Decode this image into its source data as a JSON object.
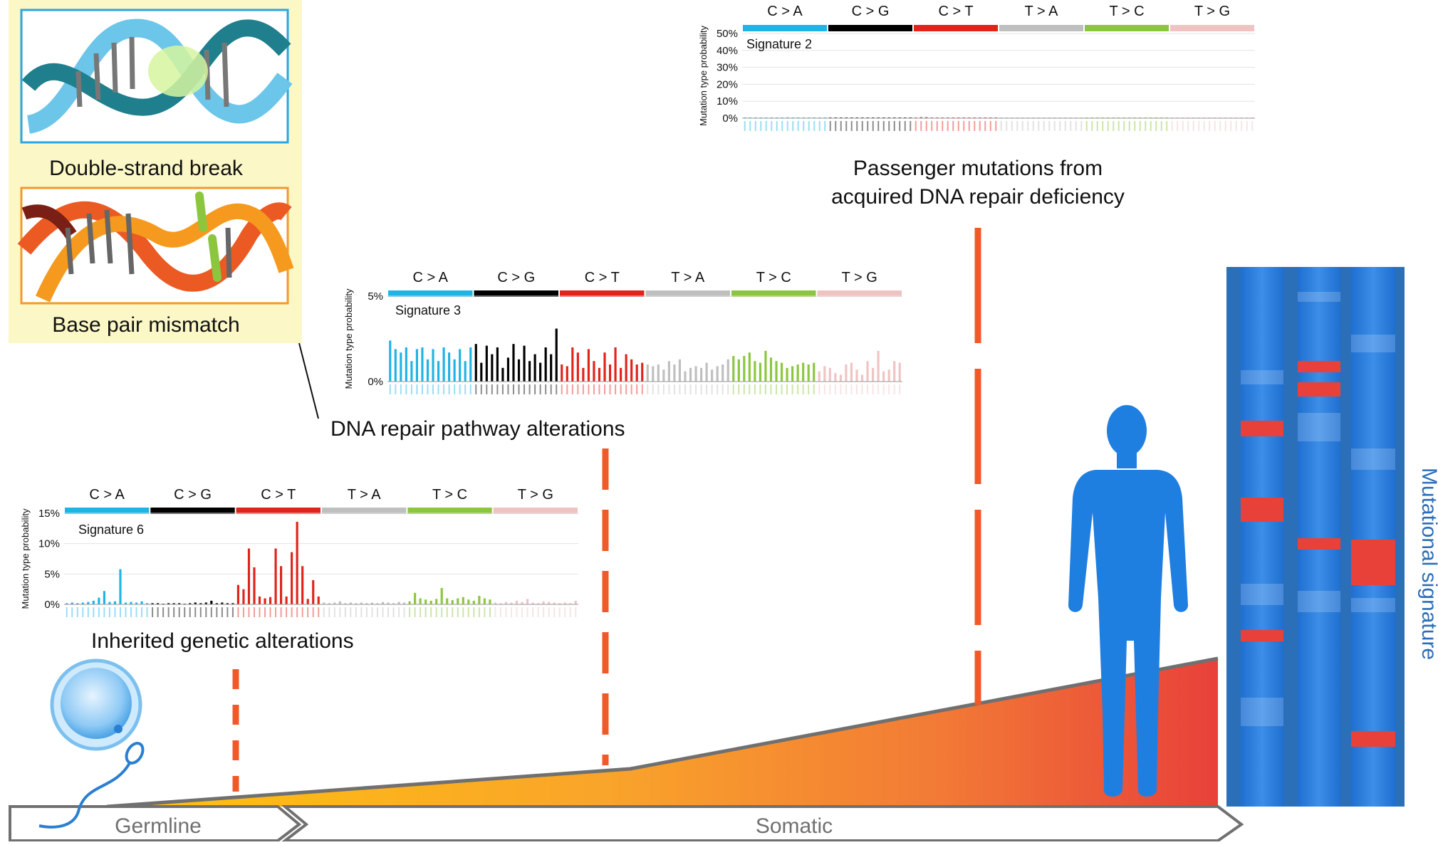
{
  "panel": {
    "dsb_label": "Double-strand break",
    "mismatch_label": "Base pair mismatch"
  },
  "stages": {
    "inherited": "Inherited genetic alterations",
    "repair_pathway": "DNA repair pathway alterations",
    "passenger_line1": "Passenger mutations from",
    "passenger_line2": "acquired DNA repair deficiency"
  },
  "timeline": {
    "germline": "Germline",
    "somatic": "Somatic"
  },
  "side_label": "Mutational signature",
  "colors": {
    "C>A": "#1eb4e6",
    "C>G": "#000000",
    "C>T": "#e2231a",
    "T>A": "#bfbfbf",
    "T>C": "#8cc63f",
    "T>G": "#f0c3c3",
    "dashes": "#f05a28",
    "body": "#1f7fe0",
    "band": "#e8413a"
  },
  "chart_data": [
    {
      "type": "bar",
      "title": "Signature 6",
      "ylabel": "Mutation type probability",
      "ylim": [
        0,
        15
      ],
      "yticks": [
        "0%",
        "5%",
        "10%",
        "15%"
      ],
      "categories": [
        "C > A",
        "C > G",
        "C > T",
        "T > A",
        "T > C",
        "T > G"
      ],
      "values": [
        [
          0.2,
          0.3,
          0.2,
          0.3,
          0.4,
          0.6,
          1.1,
          2.2,
          0.4,
          0.5,
          5.8,
          0.3,
          0.4,
          0.3,
          0.5,
          0.2
        ],
        [
          0.2,
          0.2,
          0.1,
          0.2,
          0.2,
          0.2,
          0.1,
          0.2,
          0.3,
          0.2,
          0.3,
          0.6,
          0.2,
          0.3,
          0.2,
          0.2
        ],
        [
          3.2,
          2.5,
          9.2,
          6.1,
          1.3,
          1.0,
          1.2,
          9.2,
          6.3,
          1.3,
          8.6,
          13.6,
          6.3,
          0.9,
          4.0,
          1.3
        ],
        [
          0.3,
          0.2,
          0.3,
          0.5,
          0.2,
          0.3,
          0.2,
          0.3,
          0.2,
          0.3,
          0.2,
          0.4,
          0.3,
          0.2,
          0.4,
          0.3
        ],
        [
          0.5,
          1.9,
          1.0,
          0.8,
          0.6,
          0.9,
          2.7,
          1.0,
          0.7,
          1.0,
          1.2,
          0.8,
          0.6,
          1.4,
          1.0,
          0.8
        ],
        [
          0.3,
          0.2,
          0.4,
          0.3,
          0.6,
          0.4,
          0.9,
          0.3,
          0.2,
          0.5,
          0.4,
          0.3,
          0.2,
          0.3,
          0.2,
          0.6
        ]
      ]
    },
    {
      "type": "bar",
      "title": "Signature 3",
      "ylabel": "Mutation type probability",
      "ylim": [
        0,
        5
      ],
      "yticks": [
        "0%",
        "5%"
      ],
      "categories": [
        "C > A",
        "C > G",
        "C > T",
        "T > A",
        "T > C",
        "T > G"
      ],
      "values": [
        [
          2.4,
          1.9,
          1.7,
          2.0,
          1.2,
          1.9,
          2.0,
          1.3,
          1.9,
          1.2,
          2.0,
          1.7,
          1.3,
          1.9,
          1.2,
          2.0
        ],
        [
          2.2,
          1.1,
          2.1,
          1.6,
          2.0,
          0.8,
          1.4,
          2.2,
          1.3,
          2.1,
          1.2,
          1.6,
          1.1,
          2.0,
          1.6,
          3.1
        ],
        [
          1.0,
          0.9,
          2.0,
          1.7,
          0.8,
          1.9,
          1.2,
          0.8,
          1.7,
          1.0,
          2.0,
          0.8,
          1.6,
          1.3,
          1.0,
          1.1
        ],
        [
          1.0,
          0.9,
          1.0,
          0.7,
          1.2,
          1.0,
          1.3,
          0.6,
          0.8,
          0.9,
          0.8,
          1.1,
          0.7,
          0.9,
          1.0,
          1.3
        ],
        [
          1.5,
          1.3,
          1.5,
          1.7,
          1.2,
          1.1,
          1.8,
          1.4,
          1.2,
          1.1,
          0.8,
          0.9,
          1.0,
          1.1,
          1.0,
          1.1
        ],
        [
          0.6,
          0.9,
          0.8,
          0.5,
          0.4,
          1.0,
          1.1,
          0.7,
          0.4,
          1.2,
          0.8,
          1.8,
          0.6,
          0.7,
          1.2,
          1.1
        ]
      ]
    },
    {
      "type": "bar",
      "title": "Signature 2",
      "ylabel": "Mutation type probability",
      "ylim": [
        0,
        50
      ],
      "yticks": [
        "0%",
        "10%",
        "20%",
        "30%",
        "40%",
        "50%"
      ],
      "categories": [
        "C > A",
        "C > G",
        "C > T",
        "T > A",
        "T > C",
        "T > G"
      ],
      "values": [
        [
          0.3,
          0.2,
          0.3,
          0.2,
          0.4,
          0.3,
          0.2,
          0.3,
          0.5,
          0.3,
          0.2,
          0.4,
          0.3,
          0.3,
          0.2,
          0.3
        ],
        [
          0.2,
          0.3,
          0.3,
          0.2,
          0.4,
          0.2,
          0.3,
          0.2,
          0.3,
          0.3,
          0.2,
          0.3,
          0.3,
          0.2,
          0.4,
          0.3
        ],
        [
          0.3,
          0.6,
          0.6,
          0.4,
          0.4,
          0.3,
          0.3,
          0.4,
          0.3,
          0.2,
          0.3,
          0.3,
          0.2,
          0.3,
          0.3,
          0.2
        ],
        [
          0.2,
          0.2,
          0.2,
          0.2,
          0.2,
          0.2,
          0.2,
          0.2,
          0.2,
          0.2,
          0.2,
          0.2,
          0.2,
          0.2,
          0.2,
          0.2
        ],
        [
          0.2,
          0.2,
          0.2,
          0.2,
          0.2,
          0.2,
          0.2,
          0.2,
          0.2,
          0.2,
          0.2,
          0.2,
          0.2,
          0.2,
          0.2,
          0.2
        ],
        [
          0.2,
          0.2,
          0.2,
          0.2,
          0.2,
          0.2,
          0.2,
          0.2,
          0.2,
          0.2,
          0.2,
          0.2,
          0.2,
          0.2,
          0.2,
          0.2
        ]
      ]
    }
  ]
}
